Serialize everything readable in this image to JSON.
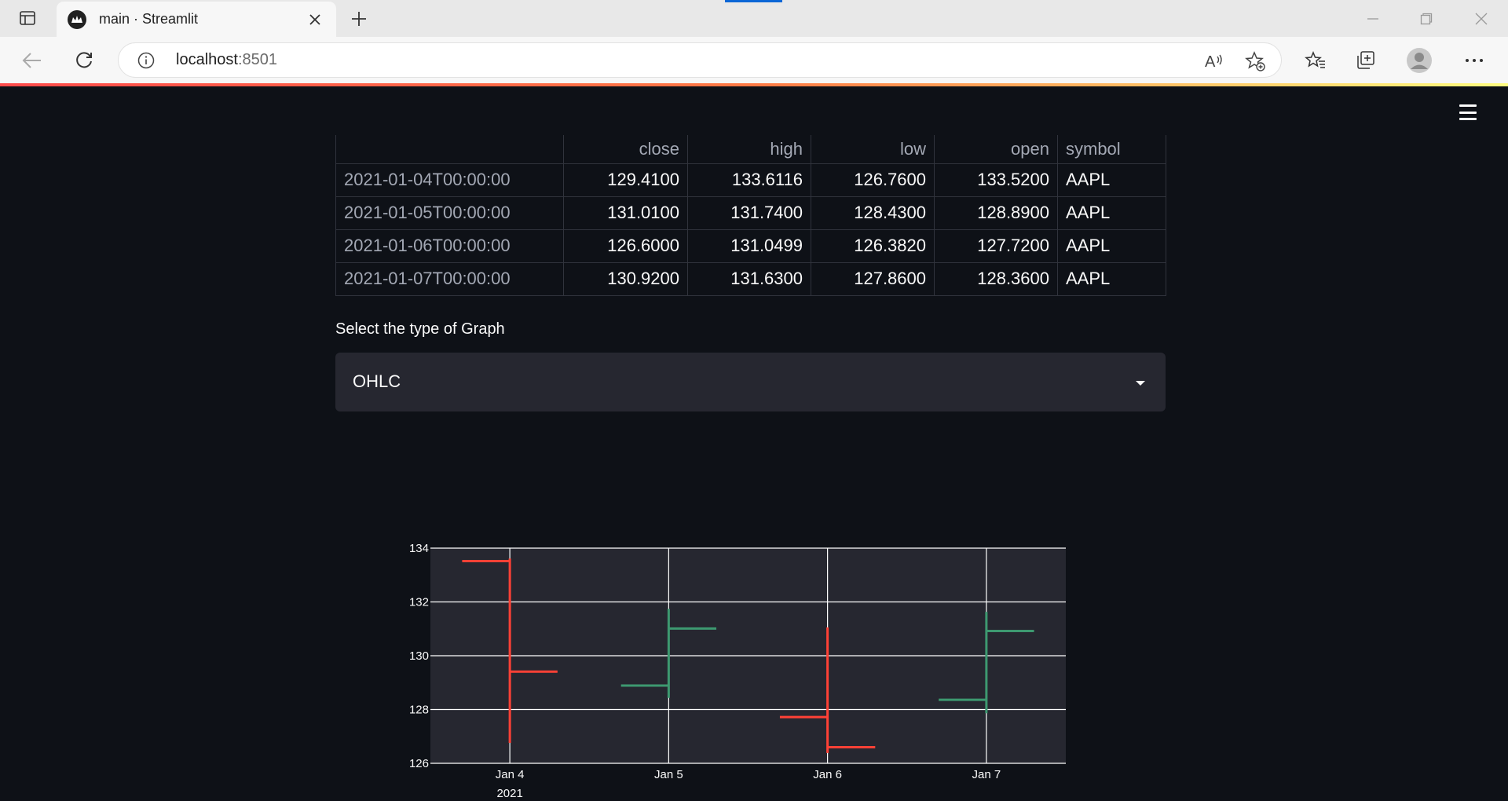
{
  "browser": {
    "tab_title": "main · Streamlit",
    "url_host": "localhost",
    "url_port": ":8501",
    "icons": [
      "sidebar-icon",
      "streamlit-favicon",
      "close-icon",
      "plus-icon",
      "minimize-icon",
      "restore-icon",
      "close-window-icon",
      "back-icon",
      "refresh-icon",
      "info-icon",
      "read-aloud-icon",
      "add-favorite-icon",
      "favorites-icon",
      "collections-icon",
      "profile-icon",
      "more-icon"
    ]
  },
  "app": {
    "menu_icon": "hamburger-icon",
    "table": {
      "columns": [
        "",
        "close",
        "high",
        "low",
        "open",
        "symbol"
      ],
      "rows": [
        [
          "2021-01-04T00:00:00",
          "129.4100",
          "133.6116",
          "126.7600",
          "133.5200",
          "AAPL"
        ],
        [
          "2021-01-05T00:00:00",
          "131.0100",
          "131.7400",
          "128.4300",
          "128.8900",
          "AAPL"
        ],
        [
          "2021-01-06T00:00:00",
          "126.6000",
          "131.0499",
          "126.3820",
          "127.7200",
          "AAPL"
        ],
        [
          "2021-01-07T00:00:00",
          "130.9200",
          "131.6300",
          "127.8600",
          "128.3600",
          "AAPL"
        ]
      ]
    },
    "select": {
      "label": "Select the type of Graph",
      "value": "OHLC"
    }
  },
  "chart_data": {
    "type": "ohlc",
    "x": [
      "Jan 4",
      "Jan 5",
      "Jan 6",
      "Jan 7"
    ],
    "x_sub": "2021",
    "open": [
      133.52,
      128.89,
      127.72,
      128.36
    ],
    "high": [
      133.6116,
      131.74,
      131.0499,
      131.63
    ],
    "low": [
      126.76,
      128.43,
      126.382,
      127.86
    ],
    "close": [
      129.41,
      131.01,
      126.6,
      130.92
    ],
    "ylim": [
      126,
      134
    ],
    "yticks": [
      126,
      128,
      130,
      132,
      134
    ],
    "colors": {
      "increasing": "#3d9970",
      "decreasing": "#ff4136",
      "plot_bg": "#262730",
      "grid": "#ffffff"
    }
  }
}
